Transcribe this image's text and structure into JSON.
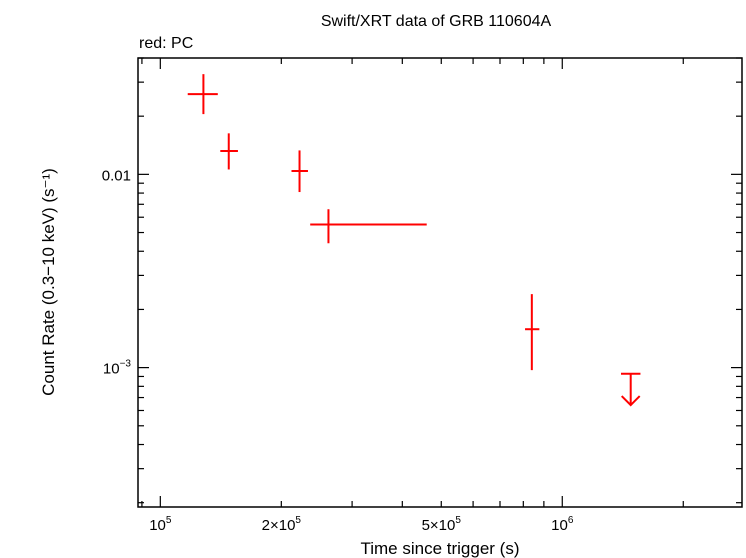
{
  "chart_data": {
    "type": "scatter",
    "title": "Swift/XRT data of GRB 110604A",
    "subtitle": "red: PC",
    "xlabel": "Time since trigger (s)",
    "ylabel": "Count Rate (0.3−10 keV) (s⁻¹)",
    "xscale": "log",
    "yscale": "log",
    "xlim": [
      88000,
      2800000
    ],
    "ylim": [
      0.00019,
      0.04
    ],
    "x_ticks": [
      {
        "value": 100000,
        "base": "10",
        "exp": "5"
      },
      {
        "value": 200000,
        "base": "2×10",
        "exp": "5"
      },
      {
        "value": 500000,
        "base": "5×10",
        "exp": "5"
      },
      {
        "value": 1000000,
        "base": "10",
        "exp": "6"
      }
    ],
    "y_ticks": [
      {
        "value": 0.01,
        "base": "0.01",
        "exp": ""
      },
      {
        "value": 0.001,
        "base": "10",
        "exp": "−3"
      }
    ],
    "series": [
      {
        "color": "#ff0000",
        "points": [
          {
            "x": 128000,
            "xlo": 117000,
            "xhi": 139000,
            "y": 0.026,
            "ylo": 0.0205,
            "yhi": 0.033
          },
          {
            "x": 148000,
            "xlo": 141000,
            "xhi": 156000,
            "y": 0.0132,
            "ylo": 0.0106,
            "yhi": 0.0163
          },
          {
            "x": 222000,
            "xlo": 212000,
            "xhi": 233000,
            "y": 0.0104,
            "ylo": 0.0081,
            "yhi": 0.0133
          },
          {
            "x": 262000,
            "xlo": 236000,
            "xhi": 460000,
            "y": 0.0055,
            "ylo": 0.0044,
            "yhi": 0.0066
          },
          {
            "x": 840000,
            "xlo": 808000,
            "xhi": 877000,
            "y": 0.00158,
            "ylo": 0.00097,
            "yhi": 0.0024
          }
        ],
        "upper_limits": [
          {
            "x": 1480000,
            "xlo": 1400000,
            "xhi": 1565000,
            "y": 0.00093,
            "arrow_to": 0.00064
          }
        ]
      }
    ]
  }
}
